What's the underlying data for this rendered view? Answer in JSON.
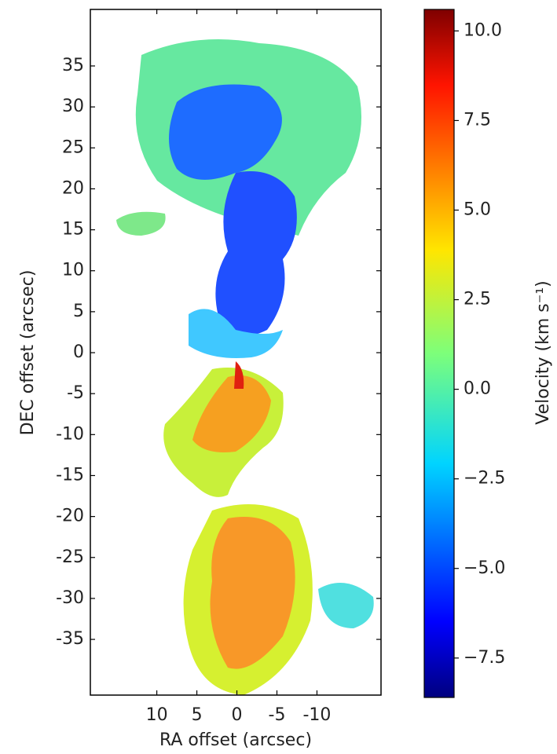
{
  "chart_data": {
    "type": "image",
    "xlabel": "RA offset (arcsec)",
    "ylabel": "DEC offset (arcsec)",
    "xlim": [
      18.3,
      -18
    ],
    "ylim": [
      -41.8,
      41.9
    ],
    "xticks": [
      10,
      5,
      0,
      -5,
      -10
    ],
    "yticks": [
      35,
      30,
      25,
      20,
      15,
      10,
      5,
      0,
      -5,
      -10,
      -15,
      -20,
      -25,
      -30,
      -35
    ],
    "colorbar": {
      "label": "Velocity (km s⁻¹)",
      "colormap": "jet",
      "lim": [
        -8.6,
        10.6
      ],
      "ticks": [
        {
          "value": 10,
          "label": "10.0"
        },
        {
          "value": 7.5,
          "label": "7.5"
        },
        {
          "value": 5,
          "label": "5.0"
        },
        {
          "value": 2.5,
          "label": "2.5"
        },
        {
          "value": 0,
          "label": "0.0"
        },
        {
          "value": -2.5,
          "label": "−2.5"
        },
        {
          "value": -5,
          "label": "−5.0"
        },
        {
          "value": -7.5,
          "label": "−7.5"
        }
      ]
    }
  }
}
